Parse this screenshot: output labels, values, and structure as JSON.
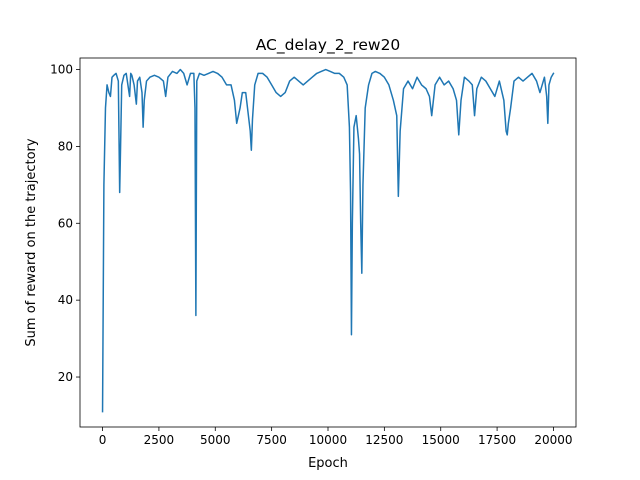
{
  "chart_data": {
    "type": "line",
    "title": "AC_delay_2_rew20",
    "xlabel": "Epoch",
    "ylabel": "Sum of reward on the trajectory",
    "xlim": [
      -1000,
      21000
    ],
    "ylim": [
      7,
      103
    ],
    "xticks": [
      0,
      2500,
      5000,
      7500,
      10000,
      12500,
      15000,
      17500,
      20000
    ],
    "yticks": [
      20,
      40,
      60,
      80,
      100
    ],
    "grid": false,
    "legend": "none",
    "series": [
      {
        "color": "#1f77b4",
        "points": [
          [
            0,
            11
          ],
          [
            60,
            70
          ],
          [
            130,
            90
          ],
          [
            200,
            96
          ],
          [
            280,
            94
          ],
          [
            350,
            93
          ],
          [
            420,
            98
          ],
          [
            500,
            98.5
          ],
          [
            600,
            99
          ],
          [
            700,
            97
          ],
          [
            760,
            68
          ],
          [
            800,
            80
          ],
          [
            850,
            96
          ],
          [
            950,
            98.5
          ],
          [
            1050,
            99
          ],
          [
            1150,
            95
          ],
          [
            1200,
            93
          ],
          [
            1250,
            99
          ],
          [
            1300,
            98.5
          ],
          [
            1400,
            96
          ],
          [
            1500,
            91
          ],
          [
            1550,
            97
          ],
          [
            1650,
            98
          ],
          [
            1750,
            94
          ],
          [
            1800,
            85
          ],
          [
            1850,
            92
          ],
          [
            1950,
            97
          ],
          [
            2100,
            98
          ],
          [
            2300,
            98.5
          ],
          [
            2500,
            98
          ],
          [
            2700,
            97
          ],
          [
            2800,
            93
          ],
          [
            2900,
            98
          ],
          [
            3100,
            99.5
          ],
          [
            3300,
            99
          ],
          [
            3450,
            100
          ],
          [
            3600,
            99
          ],
          [
            3750,
            96
          ],
          [
            3900,
            99
          ],
          [
            4050,
            99
          ],
          [
            4100,
            90
          ],
          [
            4140,
            36
          ],
          [
            4180,
            97
          ],
          [
            4300,
            99
          ],
          [
            4500,
            98.5
          ],
          [
            4700,
            99
          ],
          [
            4900,
            99.5
          ],
          [
            5100,
            99
          ],
          [
            5300,
            98
          ],
          [
            5500,
            96
          ],
          [
            5700,
            96
          ],
          [
            5850,
            92
          ],
          [
            5950,
            86
          ],
          [
            6100,
            90
          ],
          [
            6200,
            94
          ],
          [
            6350,
            94
          ],
          [
            6450,
            89
          ],
          [
            6550,
            84
          ],
          [
            6600,
            79
          ],
          [
            6650,
            87
          ],
          [
            6750,
            96
          ],
          [
            6900,
            99
          ],
          [
            7100,
            99
          ],
          [
            7300,
            98
          ],
          [
            7500,
            96
          ],
          [
            7700,
            94
          ],
          [
            7900,
            93
          ],
          [
            8100,
            94
          ],
          [
            8300,
            97
          ],
          [
            8500,
            98
          ],
          [
            8700,
            97
          ],
          [
            8900,
            96
          ],
          [
            9100,
            97
          ],
          [
            9300,
            98
          ],
          [
            9500,
            99
          ],
          [
            9700,
            99.5
          ],
          [
            9900,
            100
          ],
          [
            10100,
            99.5
          ],
          [
            10300,
            99
          ],
          [
            10500,
            99
          ],
          [
            10700,
            98
          ],
          [
            10850,
            96
          ],
          [
            10950,
            85
          ],
          [
            11000,
            68
          ],
          [
            11040,
            31
          ],
          [
            11080,
            60
          ],
          [
            11150,
            85
          ],
          [
            11250,
            88
          ],
          [
            11350,
            82
          ],
          [
            11400,
            78
          ],
          [
            11450,
            60
          ],
          [
            11500,
            47
          ],
          [
            11550,
            70
          ],
          [
            11650,
            90
          ],
          [
            11800,
            96
          ],
          [
            11950,
            99
          ],
          [
            12100,
            99.5
          ],
          [
            12300,
            99
          ],
          [
            12500,
            98
          ],
          [
            12700,
            96
          ],
          [
            12900,
            92
          ],
          [
            13050,
            88
          ],
          [
            13120,
            67
          ],
          [
            13200,
            84
          ],
          [
            13350,
            95
          ],
          [
            13550,
            97
          ],
          [
            13750,
            95
          ],
          [
            13950,
            98
          ],
          [
            14150,
            96
          ],
          [
            14350,
            95
          ],
          [
            14500,
            93
          ],
          [
            14600,
            88
          ],
          [
            14750,
            96
          ],
          [
            14950,
            98
          ],
          [
            15150,
            96
          ],
          [
            15350,
            97
          ],
          [
            15550,
            95
          ],
          [
            15700,
            92
          ],
          [
            15800,
            83
          ],
          [
            15900,
            92
          ],
          [
            16050,
            98
          ],
          [
            16250,
            97
          ],
          [
            16400,
            96
          ],
          [
            16500,
            88
          ],
          [
            16600,
            95
          ],
          [
            16800,
            98
          ],
          [
            17000,
            97
          ],
          [
            17200,
            95
          ],
          [
            17400,
            93
          ],
          [
            17600,
            97
          ],
          [
            17800,
            92
          ],
          [
            17900,
            84
          ],
          [
            17950,
            83
          ],
          [
            18000,
            86
          ],
          [
            18100,
            90
          ],
          [
            18250,
            97
          ],
          [
            18450,
            98
          ],
          [
            18650,
            97
          ],
          [
            18850,
            98
          ],
          [
            19050,
            99
          ],
          [
            19250,
            97
          ],
          [
            19400,
            94
          ],
          [
            19500,
            96
          ],
          [
            19600,
            98
          ],
          [
            19700,
            93
          ],
          [
            19750,
            86
          ],
          [
            19800,
            96
          ],
          [
            19900,
            98
          ],
          [
            20000,
            99
          ]
        ]
      }
    ]
  }
}
